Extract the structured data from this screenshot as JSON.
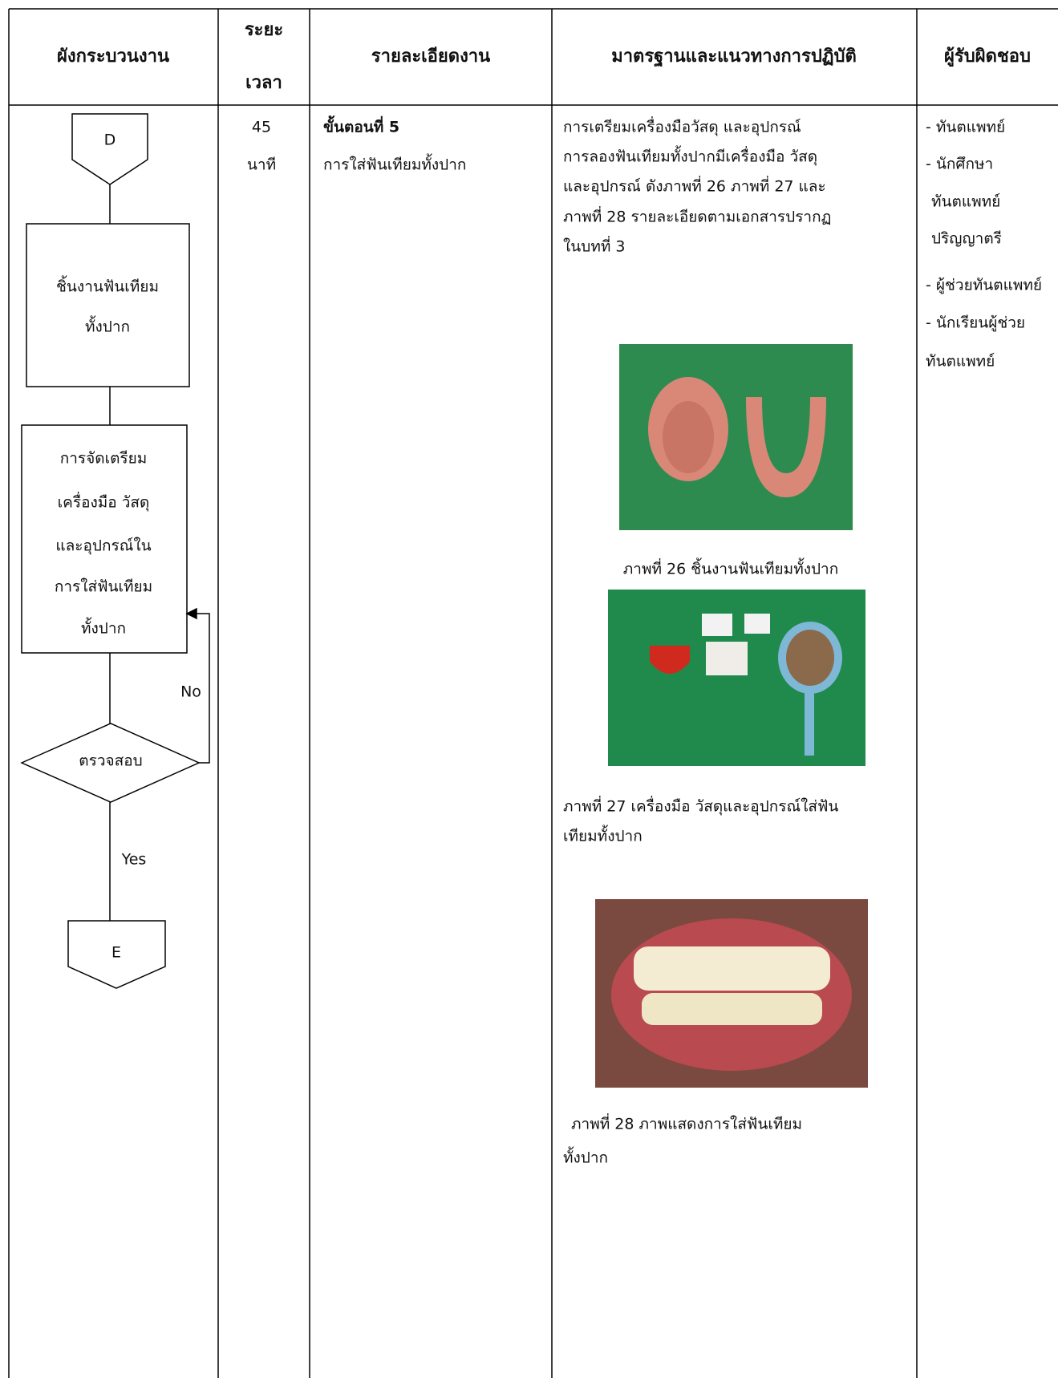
{
  "table": {
    "headers": [
      "ผังกระบวนงาน",
      [
        "ระยะ",
        "เวลา"
      ],
      "รายละเอียดงาน",
      "มาตรฐานและแนวทางการปฏิบัติ",
      "ผู้รับผิดชอบ"
    ],
    "flowchart": {
      "start": "D",
      "box1": [
        "ชิ้นงานฟันเทียม",
        "ทั้งปาก"
      ],
      "box2": [
        "การจัดเตรียม",
        "เครื่องมือ วัสดุ",
        "และอุปกรณ์ใน",
        "การใส่ฟันเทียม",
        "ทั้งปาก"
      ],
      "decision": "ตรวจสอบ",
      "no": "No",
      "yes": "Yes",
      "end": "E"
    },
    "duration": [
      "45",
      "นาที"
    ],
    "details": {
      "step": "ขั้นตอนที่ 5",
      "text": "การใส่ฟันเทียมทั้งปาก"
    },
    "standards": {
      "text": [
        "การเตรียมเครื่องมือวัสดุ และอุปกรณ์",
        "การลองฟันเทียมทั้งปากมีเครื่องมือ วัสดุ",
        "และอุปกรณ์ ดังภาพที่ 26 ภาพที่ 27 และ",
        "ภาพที่ 28 รายละเอียดตามเอกสารปรากฏ",
        "ในบทที่ 3"
      ],
      "caption_26": "ภาพที่ 26 ชิ้นงานฟันเทียมทั้งปาก",
      "caption_27": [
        "ภาพที่ 27 เครื่องมือ วัสดุและอุปกรณ์ใส่ฟัน",
        "เทียมทั้งปาก"
      ],
      "caption_28": [
        "ภาพที่ 28 ภาพแสดงการใส่ฟันเทียม",
        "ทั้งปาก"
      ]
    },
    "responsible": [
      "- ทันตแพทย์",
      "- นักศึกษา",
      "ทันตแพทย์",
      "ปริญญาตรี",
      "- ผู้ช่วยทันตแพทย์",
      "- นักเรียนผู้ช่วย",
      "ทันตแพทย์"
    ]
  }
}
